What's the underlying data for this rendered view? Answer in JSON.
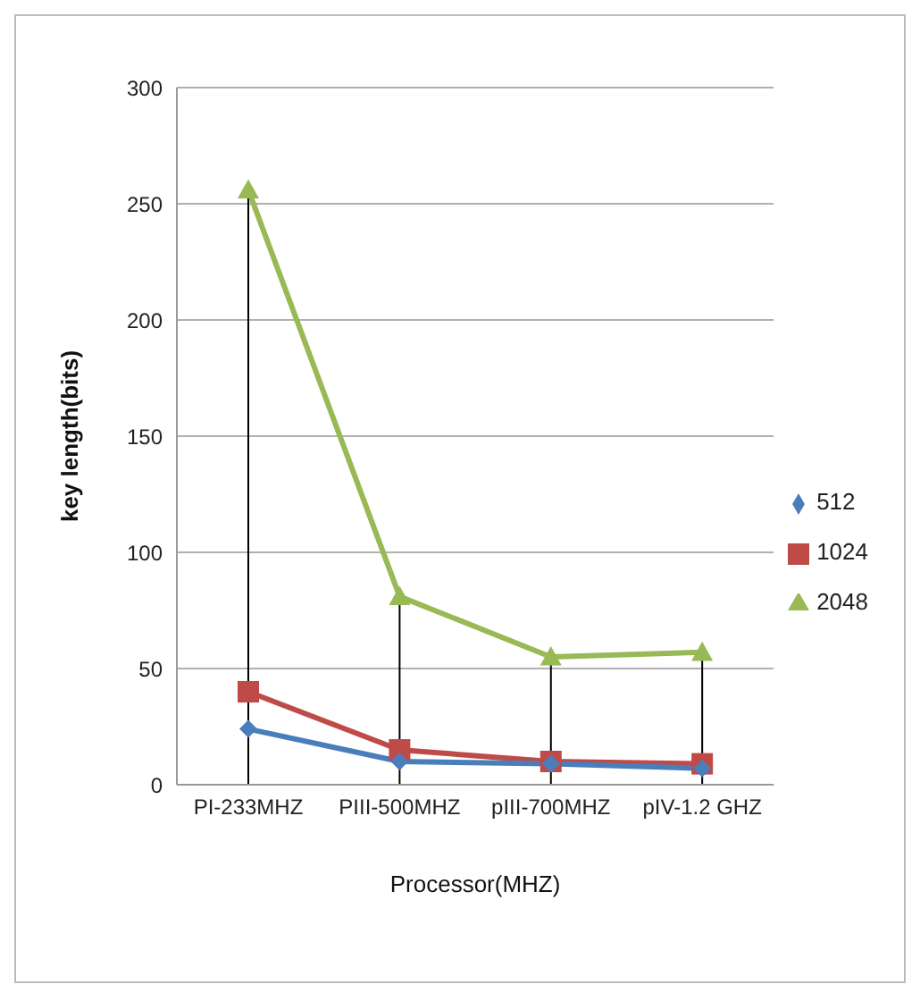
{
  "chart_data": {
    "type": "line",
    "xlabel": "Processor(MHZ)",
    "ylabel": "key length(bits)",
    "categories": [
      "PI-233MHZ",
      "PIII-500MHZ",
      "pIII-700MHZ",
      "pIV-1.2 GHZ"
    ],
    "series": [
      {
        "name": "512",
        "color": "#4a7ebb",
        "marker": "diamond",
        "values": [
          24,
          10,
          9,
          7
        ]
      },
      {
        "name": "1024",
        "color": "#be4b48",
        "marker": "square",
        "values": [
          40,
          15,
          10,
          9
        ]
      },
      {
        "name": "2048",
        "color": "#98b954",
        "marker": "triangle",
        "values": [
          256,
          81,
          55,
          57
        ]
      }
    ],
    "ylim": [
      0,
      300
    ],
    "yticks": [
      0,
      50,
      100,
      150,
      200,
      250,
      300
    ],
    "grid": "y",
    "legend": "right",
    "ref_lines": [
      {
        "axis": "x",
        "value": "PI-233MHZ",
        "color": "#000000"
      },
      {
        "axis": "x",
        "value": "PIII-500MHZ",
        "color": "#000000"
      },
      {
        "axis": "x",
        "value": "pIII-700MHZ",
        "color": "#000000"
      },
      {
        "axis": "x",
        "value": "pIV-1.2 GHZ",
        "color": "#000000"
      }
    ]
  }
}
